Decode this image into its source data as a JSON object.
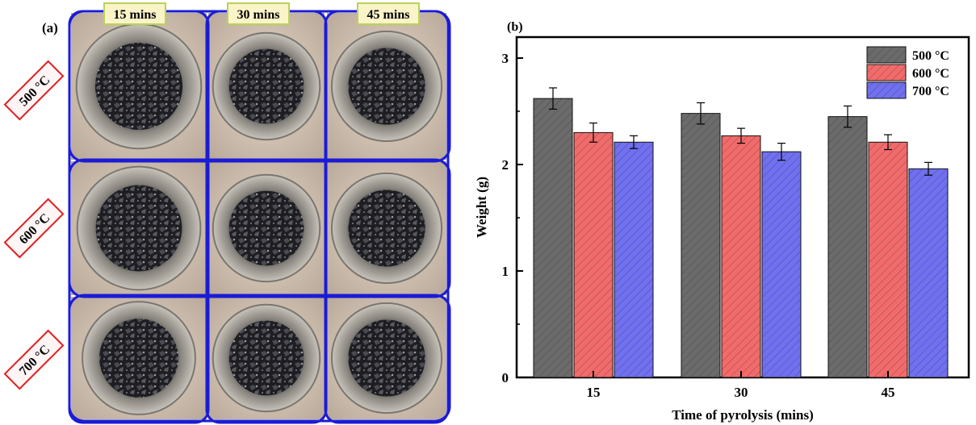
{
  "panel_a": {
    "label": "(a)",
    "columns": [
      "15 mins",
      "30 mins",
      "45 mins"
    ],
    "rows": [
      "500 °C",
      "600 °C",
      "700 °C"
    ],
    "colors": {
      "frame": "#1b1bd6",
      "column_tag_bg": "#fbf4c8",
      "column_tag_border": "#b8d35a",
      "row_tag_border": "#e02020",
      "row_tag_bg": "#fff5f5"
    }
  },
  "chart_data": {
    "type": "bar",
    "panel_label": "(b)",
    "categories": [
      "15",
      "30",
      "45"
    ],
    "series": [
      {
        "name": "500 °C",
        "values": [
          2.62,
          2.48,
          2.45
        ],
        "errors": [
          0.1,
          0.1,
          0.1
        ],
        "color": "#6b6b6b"
      },
      {
        "name": "600 °C",
        "values": [
          2.3,
          2.27,
          2.21
        ],
        "errors": [
          0.09,
          0.07,
          0.07
        ],
        "color": "#f26b6b"
      },
      {
        "name": "700 °C",
        "values": [
          2.21,
          2.12,
          1.96
        ],
        "errors": [
          0.06,
          0.08,
          0.06
        ],
        "color": "#7070f0"
      }
    ],
    "xlabel": "Time of pyrolysis (mins)",
    "ylabel": "Weight (g)",
    "ylim": [
      0,
      3.0
    ],
    "yticks": [
      "0",
      "1",
      "2",
      "3"
    ],
    "legend_position": "top-right",
    "hatch": "diagonal"
  }
}
